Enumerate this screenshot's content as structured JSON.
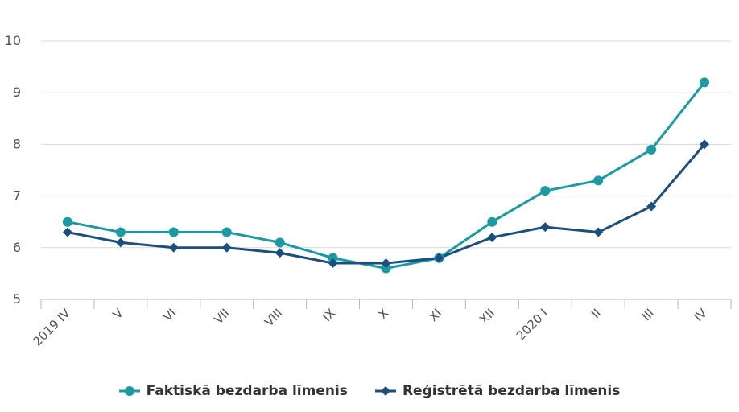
{
  "chart_data": {
    "type": "line",
    "categories": [
      "2019 IV",
      "V",
      "VI",
      "VII",
      "VIII",
      "IX",
      "X",
      "XI",
      "XII",
      "2020 I",
      "II",
      "III",
      "IV"
    ],
    "ylim": [
      5,
      10
    ],
    "yticks": [
      "5",
      "6",
      "7",
      "8",
      "9",
      "10"
    ],
    "grid": true,
    "legend_position": "bottom",
    "series": [
      {
        "name": "Faktiskā bezdarba līmenis",
        "color": "#1a9aa3",
        "marker": "circle",
        "values": [
          6.5,
          6.3,
          6.3,
          6.3,
          6.1,
          5.8,
          5.6,
          5.8,
          6.5,
          7.1,
          7.3,
          7.9,
          9.2
        ]
      },
      {
        "name": "Reģistrētā bezdarba līmenis",
        "color": "#1b4f80",
        "marker": "diamond",
        "values": [
          6.3,
          6.1,
          6.0,
          6.0,
          5.9,
          5.7,
          5.7,
          5.8,
          6.2,
          6.4,
          6.3,
          6.8,
          8.0
        ]
      }
    ]
  }
}
